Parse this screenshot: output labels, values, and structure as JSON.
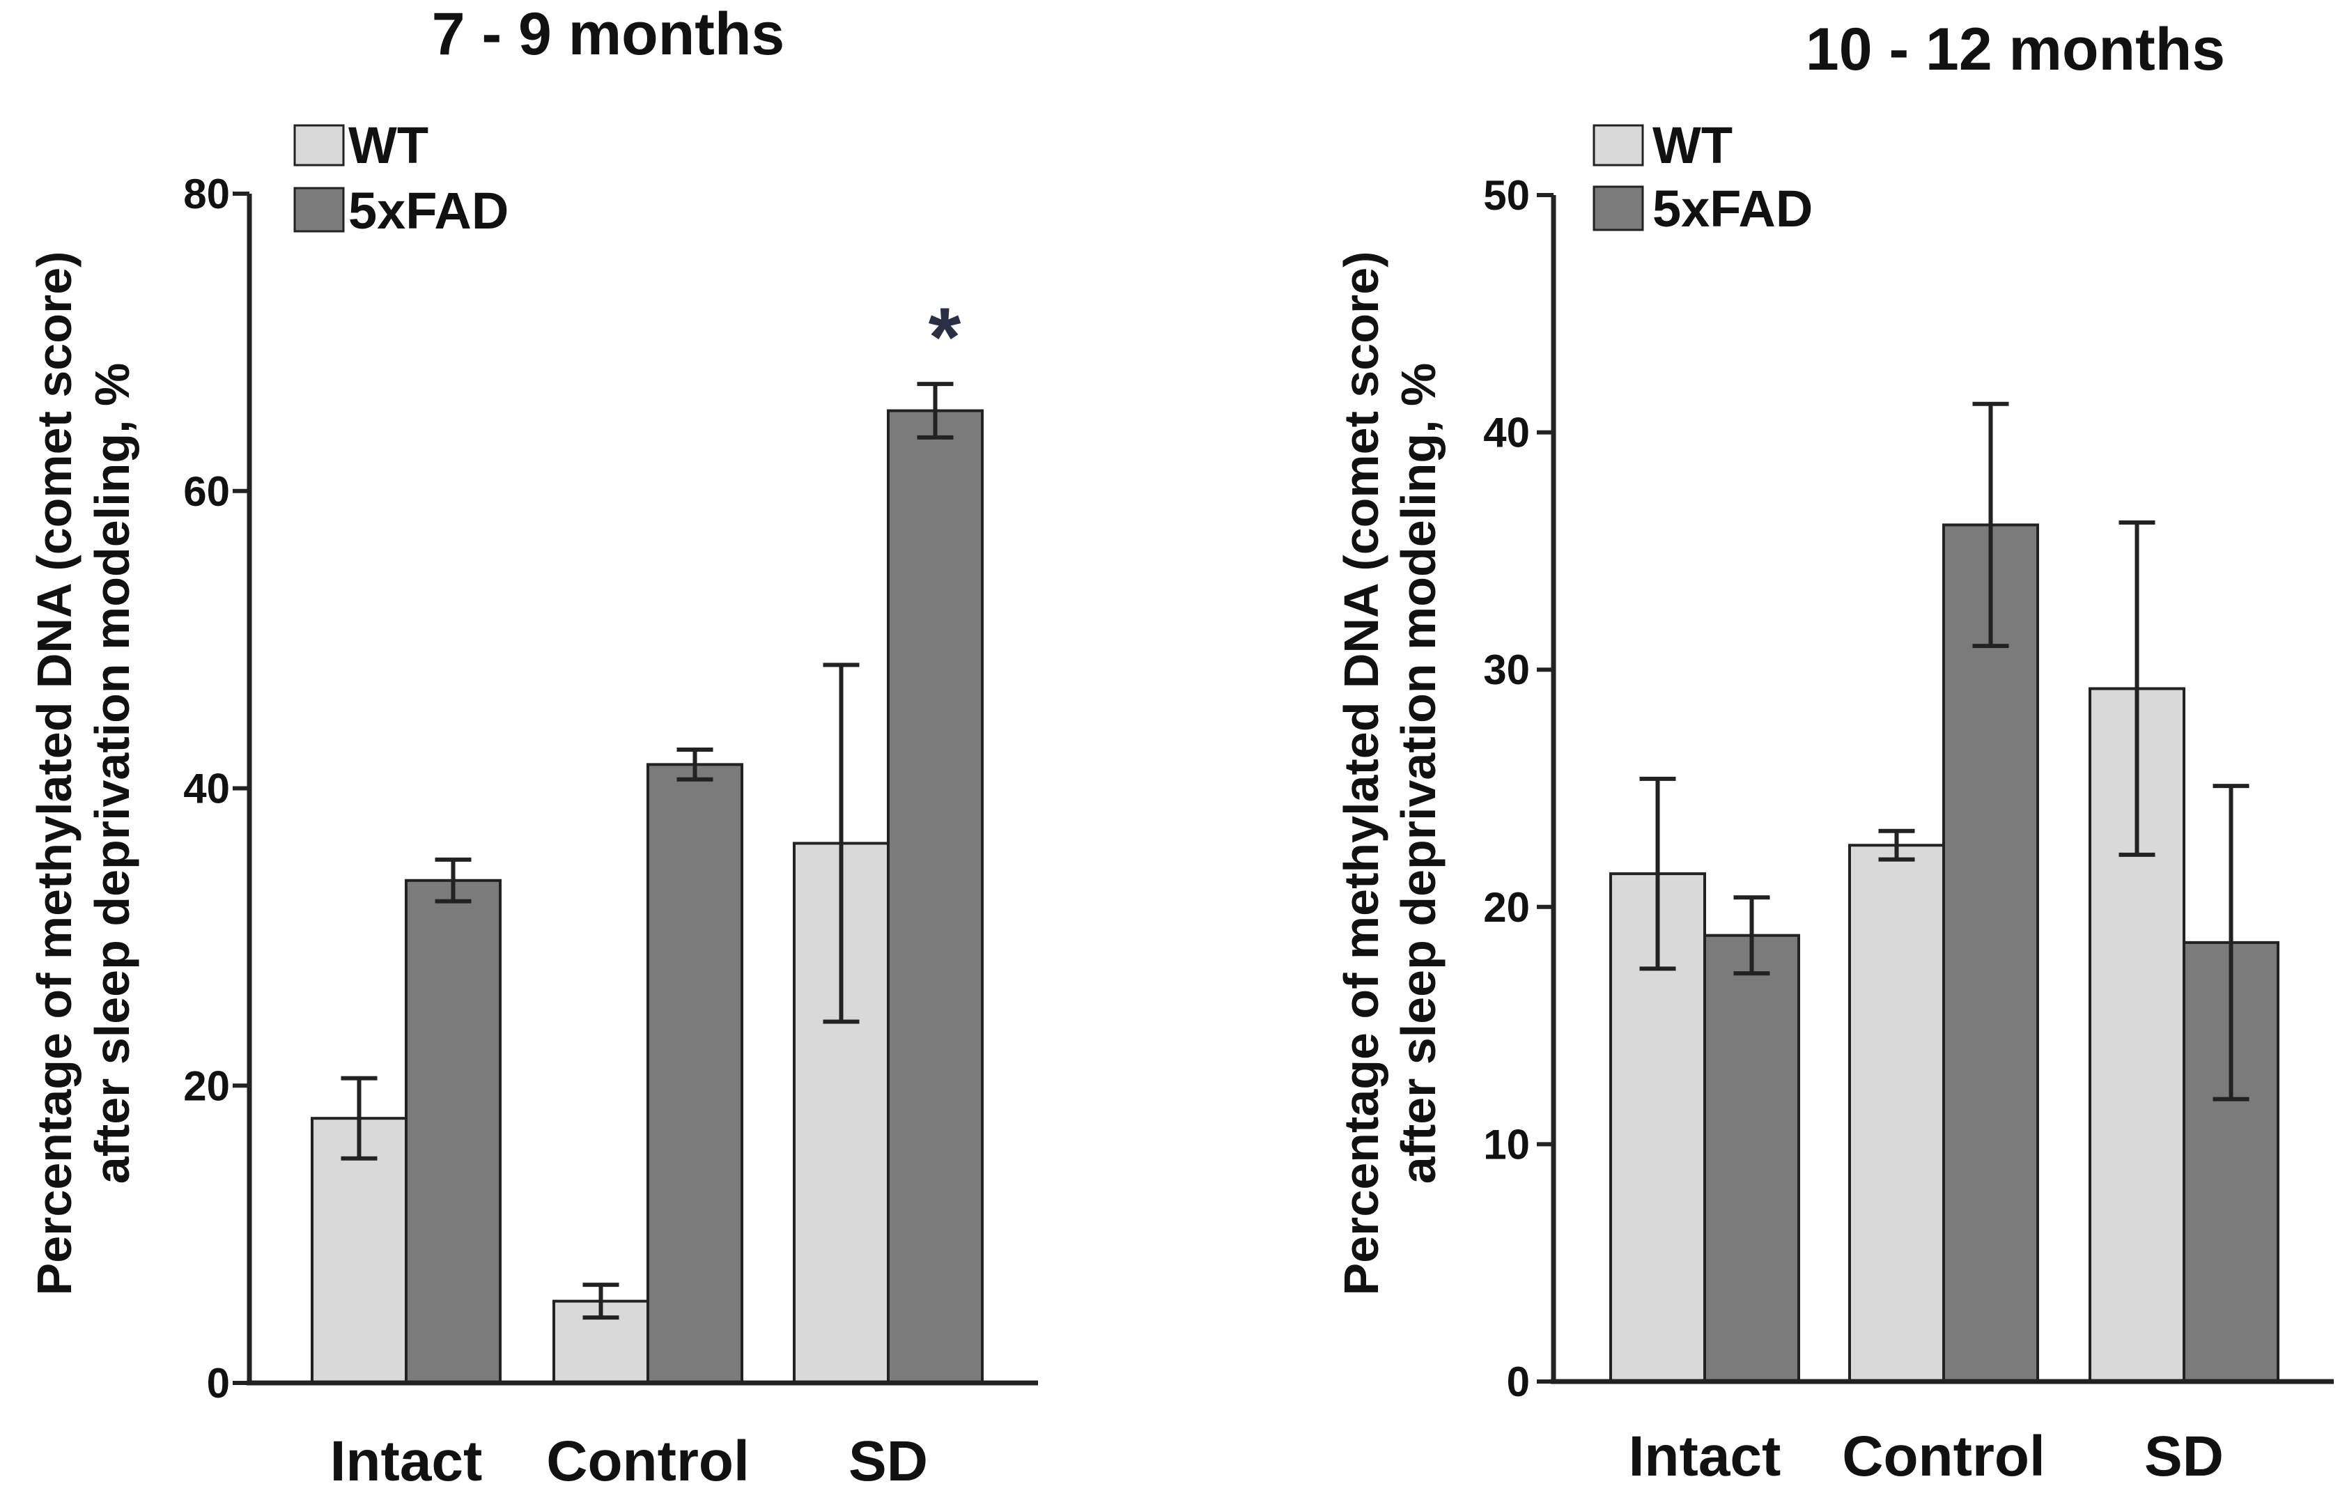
{
  "colors": {
    "wt": "#d9d9d9",
    "fad": "#7b7b7b",
    "stroke": "#222222"
  },
  "chart_data": [
    {
      "type": "bar",
      "title": "7 - 9 months",
      "ylabel_line1": "Percentage of methylated DNA (comet score)",
      "ylabel_line2": "after sleep deprivation modeling, %",
      "xlabel": "",
      "categories": [
        "Intact",
        "Control",
        "SD"
      ],
      "ylim": [
        0,
        80
      ],
      "yticks": [
        "0",
        "20",
        "40",
        "60",
        "80"
      ],
      "legend": [
        "WT",
        "5xFAD"
      ],
      "legend_position": "top-left",
      "series": [
        {
          "name": "WT",
          "values": [
            17.8,
            5.5,
            36.3
          ],
          "errors": [
            2.7,
            1.1,
            12.0
          ]
        },
        {
          "name": "5xFAD",
          "values": [
            33.8,
            41.6,
            65.4
          ],
          "errors": [
            1.4,
            1.0,
            1.8
          ]
        }
      ],
      "annotations": [
        {
          "text": "*",
          "category": "SD",
          "series": "5xFAD"
        }
      ]
    },
    {
      "type": "bar",
      "title": "10 - 12 months",
      "ylabel_line1": "Percentage of methylated DNA (comet score)",
      "ylabel_line2": "after sleep deprivation modeling, %",
      "xlabel": "",
      "categories": [
        "Intact",
        "Control",
        "SD"
      ],
      "ylim": [
        0,
        50
      ],
      "yticks": [
        "0",
        "10",
        "20",
        "30",
        "40",
        "50"
      ],
      "legend": [
        "WT",
        "5xFAD"
      ],
      "legend_position": "top-left",
      "series": [
        {
          "name": "WT",
          "values": [
            21.4,
            22.6,
            29.2
          ],
          "errors": [
            4.0,
            0.6,
            7.0
          ]
        },
        {
          "name": "5xFAD",
          "values": [
            18.8,
            36.1,
            18.5
          ],
          "errors": [
            1.6,
            5.1,
            6.6
          ]
        }
      ],
      "annotations": []
    }
  ]
}
